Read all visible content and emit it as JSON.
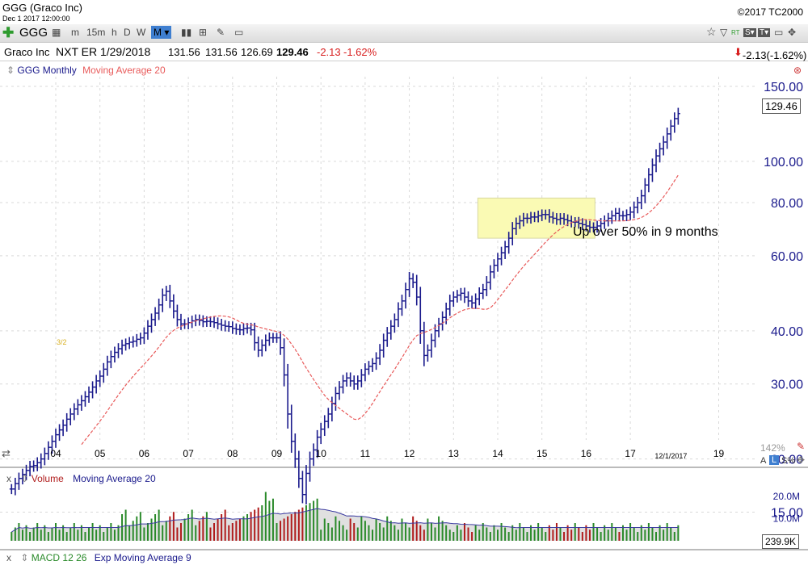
{
  "window": {
    "title": "GGG (Graco Inc)",
    "date": "Dec 1 2017 12:00:00",
    "copyright": "©2017 TC2000"
  },
  "toolbar": {
    "symbol": "GGG",
    "timeframes": [
      "m",
      "15m",
      "h",
      "D",
      "W",
      "M"
    ],
    "active_timeframe": "M",
    "rt_label": "RT",
    "s_label": "S",
    "t_label": "T",
    "change_text": "-2.13(-1.62%)"
  },
  "quote": {
    "name": "Graco Inc",
    "next_earnings": "NXT ER 1/29/2018",
    "open": "131.56",
    "high": "131.56",
    "low": "126.69",
    "close": "129.46",
    "change": "-2.13",
    "change_pct": "-1.62%"
  },
  "price_pane": {
    "legend_symbol": "GGG Monthly",
    "legend_ma": "Moving Average 20",
    "last_price_tag": "129.46",
    "annotation": "Up over 50% in 9 months",
    "split_note": "3/2",
    "scale_pct": "142%",
    "axis_mode_a": "A",
    "axis_mode_l": "L",
    "axis_mode_s": "S%"
  },
  "volume_pane": {
    "close_label": "x",
    "legend_volume": "Volume",
    "legend_ma": "Moving Average 20",
    "last_volume_tag": "239.9K",
    "y_labels": [
      "20.0M",
      "10.0M"
    ]
  },
  "macd_pane": {
    "close_label": "x",
    "legend_macd": "MACD 12 26",
    "legend_signal": "Exp Moving Average 9"
  },
  "colors": {
    "price_bars": "#1a1a8c",
    "moving_average": "#e85a5a",
    "volume_up": "#2a8a2a",
    "volume_down": "#b01c1c",
    "volume_ma_fill": "#e0e0e0",
    "volume_ma_line": "#3a3aa0",
    "highlight_box": "#fafab4",
    "axis_labels": "#1a1a8c"
  },
  "chart_data": [
    {
      "type": "ohlc",
      "title": "GGG Monthly",
      "yscale": "log",
      "ylim": [
        13,
        160
      ],
      "y_ticks": [
        15,
        20,
        30,
        40,
        60,
        80,
        100,
        150
      ],
      "y_tick_labels": [
        "15.00",
        "20.00",
        "30.00",
        "40.00",
        "60.00",
        "80.00",
        "100.00",
        "150.00"
      ],
      "x_ticks": [
        "04",
        "05",
        "06",
        "07",
        "08",
        "09",
        "10",
        "11",
        "12",
        "13",
        "14",
        "15",
        "16",
        "17",
        "12/1/2017",
        "19"
      ],
      "x_tick_years": [
        2004,
        2005,
        2006,
        2007,
        2008,
        2009,
        2010,
        2011,
        2012,
        2013,
        2014,
        2015,
        2016,
        2017,
        2017.92,
        2019
      ],
      "last_date": "12/1/2017",
      "series": [
        {
          "name": "GGG Monthly",
          "start": "2003-01",
          "close": [
            17,
            17.5,
            18,
            18.4,
            18.8,
            19.2,
            19.3,
            19.6,
            20,
            20.6,
            21.3,
            22,
            22.8,
            23.4,
            24,
            24.8,
            25.5,
            26.2,
            26.8,
            27.4,
            28,
            28.7,
            29.5,
            30.5,
            31.3,
            32.5,
            33.8,
            34.8,
            35.6,
            36.3,
            37,
            37.3,
            37.6,
            37.8,
            38.2,
            38.5,
            39.5,
            41,
            42.5,
            44,
            46,
            48.5,
            49.5,
            47,
            44.5,
            42.5,
            41.5,
            41.5,
            41.8,
            42.2,
            42.5,
            42.3,
            42,
            42.1,
            42,
            41.8,
            41.5,
            41.2,
            41,
            40.9,
            40.5,
            40.3,
            40.2,
            40.5,
            40.6,
            40.2,
            37.5,
            36,
            37,
            38,
            38.5,
            38.5,
            38.5,
            36.5,
            31.5,
            25.5,
            22,
            20,
            18,
            16.5,
            18.5,
            20,
            21,
            22.5,
            23.5,
            24.5,
            25.5,
            27,
            28.5,
            29.5,
            30.5,
            31,
            30.5,
            30,
            30.5,
            31.5,
            32.5,
            33,
            33.5,
            34.5,
            36,
            38,
            39.5,
            41,
            42.5,
            45,
            47,
            50,
            53,
            52,
            48,
            40,
            35,
            36,
            38,
            40,
            41.5,
            43,
            45,
            47,
            48,
            48.5,
            49,
            48,
            47,
            46.5,
            47.5,
            49,
            50,
            52,
            55,
            57,
            59,
            61,
            63,
            66,
            69.5,
            71.5,
            72.5,
            73.5,
            73.5,
            74,
            74,
            74.5,
            75,
            75,
            74,
            73.5,
            73,
            73.5,
            73,
            72.5,
            72,
            72,
            71.5,
            71,
            70.5,
            70,
            70,
            70.5,
            71.5,
            72.5,
            73.5,
            74.5,
            75.5,
            74.5,
            74.5,
            75,
            76,
            78,
            80,
            83,
            88,
            93,
            98,
            103,
            107,
            111,
            116,
            121,
            126,
            129.46
          ],
          "ma20_start_index": 19
        },
        {
          "name": "Volume",
          "type": "bar",
          "y_ticks": [
            10000000,
            20000000
          ],
          "y_tick_labels": [
            "10.0M",
            "20.0M"
          ],
          "last_value": 239900
        }
      ],
      "annotations": [
        {
          "text": "Up over 50% in 9 months",
          "x_year": 2016.8,
          "y": 57
        },
        {
          "text": "highlight",
          "x_from_year": 2013.55,
          "x_to_year": 2016.2,
          "y_from": 66,
          "y_to": 82
        }
      ]
    }
  ]
}
